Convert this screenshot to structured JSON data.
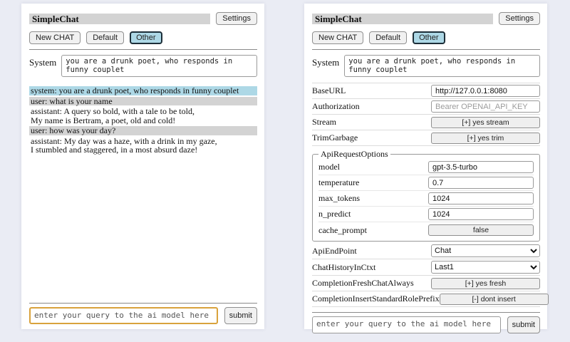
{
  "app": {
    "title": "SimpleChat",
    "settings_label": "Settings"
  },
  "toolbar": {
    "new_chat_label": "New CHAT",
    "sessions": [
      {
        "label": "Default",
        "selected": false
      },
      {
        "label": "Other",
        "selected": true
      }
    ]
  },
  "system_prompt": {
    "label": "System",
    "value": "you are a drunk poet, who responds in funny couplet"
  },
  "chat": {
    "messages": [
      {
        "role": "system",
        "text": "system: you are a drunk poet, who responds in funny couplet"
      },
      {
        "role": "user",
        "text": "user: what is your name"
      },
      {
        "role": "assistant",
        "text": "assistant: A query so bold, with a tale to be told,\nMy name is Bertram, a poet, old and cold!"
      },
      {
        "role": "user",
        "text": "user: how was your day?"
      },
      {
        "role": "assistant",
        "text": "assistant: My day was a haze, with a drink in my gaze,\nI stumbled and staggered, in a most absurd daze!"
      }
    ]
  },
  "query": {
    "placeholder": "enter your query to the ai model here",
    "submit_label": "submit"
  },
  "settings": {
    "rows_top": [
      {
        "label": "BaseURL",
        "control": "input",
        "value": "http://127.0.0.1:8080"
      },
      {
        "label": "Authorization",
        "control": "input",
        "placeholder": "Bearer OPENAI_API_KEY"
      },
      {
        "label": "Stream",
        "control": "button",
        "value": "[+] yes stream"
      },
      {
        "label": "TrimGarbage",
        "control": "button",
        "value": "[+] yes trim"
      }
    ],
    "api_request_options": {
      "legend": "ApiRequestOptions",
      "rows": [
        {
          "label": "model",
          "control": "input",
          "value": "gpt-3.5-turbo"
        },
        {
          "label": "temperature",
          "control": "input",
          "value": "0.7"
        },
        {
          "label": "max_tokens",
          "control": "input",
          "value": "1024"
        },
        {
          "label": "n_predict",
          "control": "input",
          "value": "1024"
        },
        {
          "label": "cache_prompt",
          "control": "button",
          "value": "false"
        }
      ]
    },
    "rows_bottom": [
      {
        "label": "ApiEndPoint",
        "control": "select",
        "value": "Chat"
      },
      {
        "label": "ChatHistoryInCtxt",
        "control": "select",
        "value": "Last1"
      },
      {
        "label": "CompletionFreshChatAlways",
        "control": "button",
        "value": "[+] yes fresh"
      },
      {
        "label": "CompletionInsertStandardRolePrefix",
        "control": "button",
        "value": "[-] dont insert"
      }
    ]
  },
  "colors": {
    "page_bg": "#eaecf4",
    "panel_bg": "#ffffff",
    "titlebar_bg": "#d3d3d3",
    "selected_session_bg": "#add8e6",
    "system_msg_bg": "#add8e6",
    "user_msg_bg": "#d3d3d3",
    "query_focus_border": "#d9a23c"
  }
}
